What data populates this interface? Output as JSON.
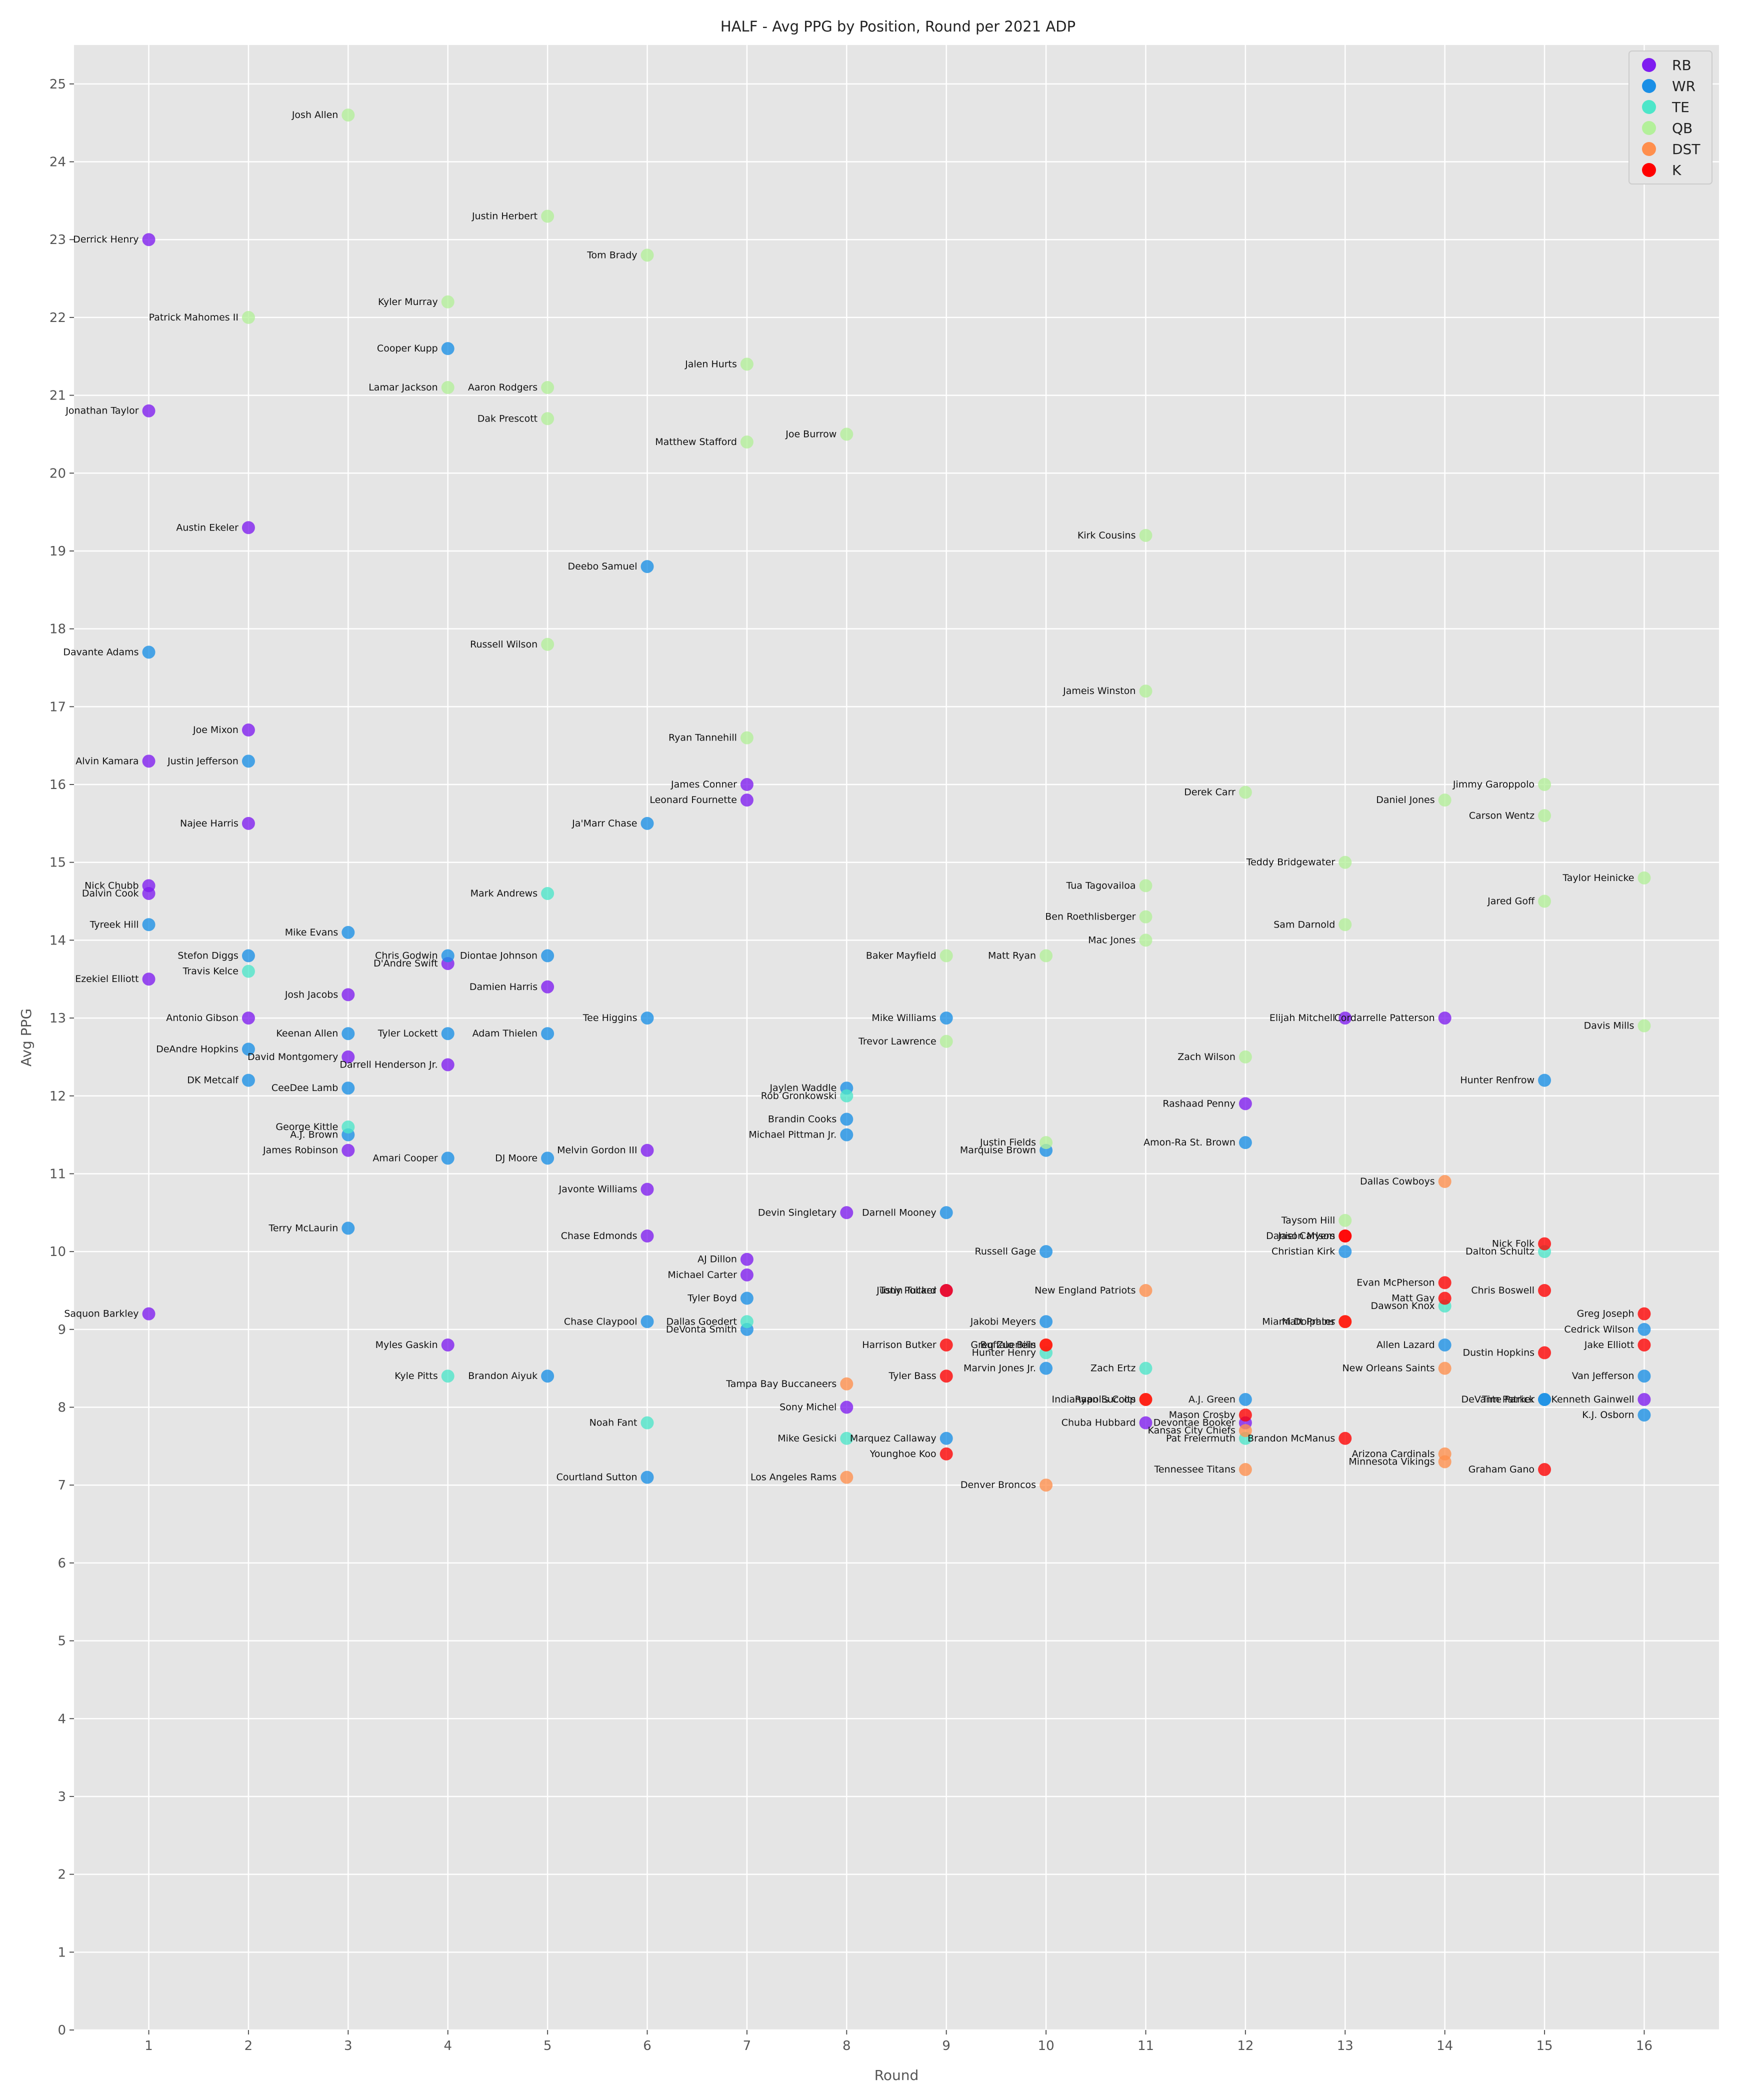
{
  "chart_data": {
    "type": "scatter",
    "title": "HALF - Avg PPG by Position, Round per 2021 ADP",
    "xlabel": "Round",
    "ylabel": "Avg PPG",
    "xlim": [
      0.25,
      16.75
    ],
    "ylim": [
      0,
      25.5
    ],
    "x_ticks": [
      1,
      2,
      3,
      4,
      5,
      6,
      7,
      8,
      9,
      10,
      11,
      12,
      13,
      14,
      15,
      16
    ],
    "y_ticks": [
      0,
      1,
      2,
      3,
      4,
      5,
      6,
      7,
      8,
      9,
      10,
      11,
      12,
      13,
      14,
      15,
      16,
      17,
      18,
      19,
      20,
      21,
      22,
      23,
      24,
      25
    ],
    "grid": true,
    "legend_position": "top-right",
    "colors": {
      "RB": "#7f1cf0",
      "WR": "#1a8fe6",
      "TE": "#4de6c9",
      "QB": "#b3f09a",
      "DST": "#ff8f4d",
      "K": "#ff0000"
    },
    "series": [
      {
        "name": "RB",
        "points": [
          {
            "label": "Derrick Henry",
            "x": 1,
            "y": 23.0
          },
          {
            "label": "Jonathan Taylor",
            "x": 1,
            "y": 20.8
          },
          {
            "label": "Alvin Kamara",
            "x": 1,
            "y": 16.3
          },
          {
            "label": "Nick Chubb",
            "x": 1,
            "y": 14.7
          },
          {
            "label": "Dalvin Cook",
            "x": 1,
            "y": 14.6
          },
          {
            "label": "Ezekiel Elliott",
            "x": 1,
            "y": 13.5
          },
          {
            "label": "Saquon Barkley",
            "x": 1,
            "y": 9.2
          },
          {
            "label": "Austin Ekeler",
            "x": 2,
            "y": 19.3
          },
          {
            "label": "Joe Mixon",
            "x": 2,
            "y": 16.7
          },
          {
            "label": "Najee Harris",
            "x": 2,
            "y": 15.5
          },
          {
            "label": "Antonio Gibson",
            "x": 2,
            "y": 13.0
          },
          {
            "label": "Josh Jacobs",
            "x": 3,
            "y": 13.3
          },
          {
            "label": "David Montgomery",
            "x": 3,
            "y": 12.5
          },
          {
            "label": "James Robinson",
            "x": 3,
            "y": 11.3
          },
          {
            "label": "D'Andre Swift",
            "x": 4,
            "y": 13.7
          },
          {
            "label": "Darrell Henderson Jr.",
            "x": 4,
            "y": 12.4
          },
          {
            "label": "Myles Gaskin",
            "x": 4,
            "y": 8.8
          },
          {
            "label": "Damien Harris",
            "x": 5,
            "y": 13.4
          },
          {
            "label": "Melvin Gordon III",
            "x": 6,
            "y": 11.3
          },
          {
            "label": "Javonte Williams",
            "x": 6,
            "y": 10.8
          },
          {
            "label": "Chase Edmonds",
            "x": 6,
            "y": 10.2
          },
          {
            "label": "James Conner",
            "x": 7,
            "y": 16.0
          },
          {
            "label": "Leonard Fournette",
            "x": 7,
            "y": 15.8
          },
          {
            "label": "AJ Dillon",
            "x": 7,
            "y": 9.9
          },
          {
            "label": "Michael Carter",
            "x": 7,
            "y": 9.7
          },
          {
            "label": "Devin Singletary",
            "x": 8,
            "y": 10.5
          },
          {
            "label": "Sony Michel",
            "x": 8,
            "y": 8.0
          },
          {
            "label": "Tony Pollard",
            "x": 9,
            "y": 9.5
          },
          {
            "label": "Rashaad Penny",
            "x": 12,
            "y": 11.9
          },
          {
            "label": "Devontae Booker",
            "x": 12,
            "y": 7.8
          },
          {
            "label": "Chuba Hubbard",
            "x": 11,
            "y": 7.8
          },
          {
            "label": "Elijah Mitchell",
            "x": 13,
            "y": 13.0
          },
          {
            "label": "Cordarrelle Patterson",
            "x": 14,
            "y": 13.0
          },
          {
            "label": "Kenneth Gainwell",
            "x": 16,
            "y": 8.1
          }
        ]
      },
      {
        "name": "WR",
        "points": [
          {
            "label": "Davante Adams",
            "x": 1,
            "y": 17.7
          },
          {
            "label": "Tyreek Hill",
            "x": 1,
            "y": 14.2
          },
          {
            "label": "Justin Jefferson",
            "x": 2,
            "y": 16.3
          },
          {
            "label": "Stefon Diggs",
            "x": 2,
            "y": 13.8
          },
          {
            "label": "DeAndre Hopkins",
            "x": 2,
            "y": 12.6
          },
          {
            "label": "DK Metcalf",
            "x": 2,
            "y": 12.2
          },
          {
            "label": "Mike Evans",
            "x": 3,
            "y": 14.1
          },
          {
            "label": "Keenan Allen",
            "x": 3,
            "y": 12.8
          },
          {
            "label": "CeeDee Lamb",
            "x": 3,
            "y": 12.1
          },
          {
            "label": "A.J. Brown",
            "x": 3,
            "y": 11.5
          },
          {
            "label": "Terry McLaurin",
            "x": 3,
            "y": 10.3
          },
          {
            "label": "Cooper Kupp",
            "x": 4,
            "y": 21.6
          },
          {
            "label": "Chris Godwin",
            "x": 4,
            "y": 13.8
          },
          {
            "label": "Tyler Lockett",
            "x": 4,
            "y": 12.8
          },
          {
            "label": "Amari Cooper",
            "x": 4,
            "y": 11.2
          },
          {
            "label": "Diontae Johnson",
            "x": 5,
            "y": 13.8
          },
          {
            "label": "Adam Thielen",
            "x": 5,
            "y": 12.8
          },
          {
            "label": "DJ Moore",
            "x": 5,
            "y": 11.2
          },
          {
            "label": "Brandon Aiyuk",
            "x": 5,
            "y": 8.4
          },
          {
            "label": "Deebo Samuel",
            "x": 6,
            "y": 18.8
          },
          {
            "label": "Ja'Marr Chase",
            "x": 6,
            "y": 15.5
          },
          {
            "label": "Tee Higgins",
            "x": 6,
            "y": 13.0
          },
          {
            "label": "Chase Claypool",
            "x": 6,
            "y": 9.1
          },
          {
            "label": "Courtland Sutton",
            "x": 6,
            "y": 7.1
          },
          {
            "label": "Tyler Boyd",
            "x": 7,
            "y": 9.4
          },
          {
            "label": "DeVonta Smith",
            "x": 7,
            "y": 9.0
          },
          {
            "label": "Jaylen Waddle",
            "x": 8,
            "y": 12.1
          },
          {
            "label": "Brandin Cooks",
            "x": 8,
            "y": 11.7
          },
          {
            "label": "Michael Pittman Jr.",
            "x": 8,
            "y": 11.5
          },
          {
            "label": "Mike Williams",
            "x": 9,
            "y": 13.0
          },
          {
            "label": "Darnell Mooney",
            "x": 9,
            "y": 10.5
          },
          {
            "label": "Marquez Callaway",
            "x": 9,
            "y": 7.6
          },
          {
            "label": "Marquise Brown",
            "x": 10,
            "y": 11.3
          },
          {
            "label": "Russell Gage",
            "x": 10,
            "y": 10.0
          },
          {
            "label": "Jakobi Meyers",
            "x": 10,
            "y": 9.1
          },
          {
            "label": "Marvin Jones Jr.",
            "x": 10,
            "y": 8.5
          },
          {
            "label": "Amon-Ra St. Brown",
            "x": 12,
            "y": 11.4
          },
          {
            "label": "A.J. Green",
            "x": 12,
            "y": 8.1
          },
          {
            "label": "Christian Kirk",
            "x": 13,
            "y": 10.0
          },
          {
            "label": "Allen Lazard",
            "x": 14,
            "y": 8.8
          },
          {
            "label": "Hunter Renfrow",
            "x": 15,
            "y": 12.2
          },
          {
            "label": "Tim Patrick",
            "x": 15,
            "y": 8.1
          },
          {
            "label": "DeVante Parker",
            "x": 15,
            "y": 8.1
          },
          {
            "label": "Cedrick Wilson",
            "x": 16,
            "y": 9.0
          },
          {
            "label": "Van Jefferson",
            "x": 16,
            "y": 8.4
          },
          {
            "label": "K.J. Osborn",
            "x": 16,
            "y": 7.9
          }
        ]
      },
      {
        "name": "TE",
        "points": [
          {
            "label": "Travis Kelce",
            "x": 2,
            "y": 13.6
          },
          {
            "label": "George Kittle",
            "x": 3,
            "y": 11.6
          },
          {
            "label": "Kyle Pitts",
            "x": 4,
            "y": 8.4
          },
          {
            "label": "Mark Andrews",
            "x": 5,
            "y": 14.6
          },
          {
            "label": "Noah Fant",
            "x": 6,
            "y": 7.8
          },
          {
            "label": "Dallas Goedert",
            "x": 7,
            "y": 9.1
          },
          {
            "label": "Rob Gronkowski",
            "x": 8,
            "y": 12.0
          },
          {
            "label": "Mike Gesicki",
            "x": 8,
            "y": 7.6
          },
          {
            "label": "Hunter Henry",
            "x": 10,
            "y": 8.7
          },
          {
            "label": "Zach Ertz",
            "x": 11,
            "y": 8.5
          },
          {
            "label": "Pat Freiermuth",
            "x": 12,
            "y": 7.6
          },
          {
            "label": "Dawson Knox",
            "x": 14,
            "y": 9.3
          },
          {
            "label": "Dalton Schultz",
            "x": 15,
            "y": 10.0
          }
        ]
      },
      {
        "name": "QB",
        "points": [
          {
            "label": "Patrick Mahomes II",
            "x": 2,
            "y": 22.0
          },
          {
            "label": "Josh Allen",
            "x": 3,
            "y": 24.6
          },
          {
            "label": "Kyler Murray",
            "x": 4,
            "y": 22.2
          },
          {
            "label": "Lamar Jackson",
            "x": 4,
            "y": 21.1
          },
          {
            "label": "Justin Herbert",
            "x": 5,
            "y": 23.3
          },
          {
            "label": "Aaron Rodgers",
            "x": 5,
            "y": 21.1
          },
          {
            "label": "Dak Prescott",
            "x": 5,
            "y": 20.7
          },
          {
            "label": "Russell Wilson",
            "x": 5,
            "y": 17.8
          },
          {
            "label": "Tom Brady",
            "x": 6,
            "y": 22.8
          },
          {
            "label": "Jalen Hurts",
            "x": 7,
            "y": 21.4
          },
          {
            "label": "Matthew Stafford",
            "x": 7,
            "y": 20.4
          },
          {
            "label": "Ryan Tannehill",
            "x": 7,
            "y": 16.6
          },
          {
            "label": "Joe Burrow",
            "x": 8,
            "y": 20.5
          },
          {
            "label": "Baker Mayfield",
            "x": 9,
            "y": 13.8
          },
          {
            "label": "Trevor Lawrence",
            "x": 9,
            "y": 12.7
          },
          {
            "label": "Matt Ryan",
            "x": 10,
            "y": 13.8
          },
          {
            "label": "Justin Fields",
            "x": 10,
            "y": 11.4
          },
          {
            "label": "Kirk Cousins",
            "x": 11,
            "y": 19.2
          },
          {
            "label": "Jameis Winston",
            "x": 11,
            "y": 17.2
          },
          {
            "label": "Tua Tagovailoa",
            "x": 11,
            "y": 14.7
          },
          {
            "label": "Ben Roethlisberger",
            "x": 11,
            "y": 14.3
          },
          {
            "label": "Mac Jones",
            "x": 11,
            "y": 14.0
          },
          {
            "label": "Derek Carr",
            "x": 12,
            "y": 15.9
          },
          {
            "label": "Zach Wilson",
            "x": 12,
            "y": 12.5
          },
          {
            "label": "Teddy Bridgewater",
            "x": 13,
            "y": 15.0
          },
          {
            "label": "Sam Darnold",
            "x": 13,
            "y": 14.2
          },
          {
            "label": "Taysom Hill",
            "x": 13,
            "y": 10.4
          },
          {
            "label": "Daniel Jones",
            "x": 14,
            "y": 15.8
          },
          {
            "label": "Jimmy Garoppolo",
            "x": 15,
            "y": 16.0
          },
          {
            "label": "Carson Wentz",
            "x": 15,
            "y": 15.6
          },
          {
            "label": "Jared Goff",
            "x": 15,
            "y": 14.5
          },
          {
            "label": "Taylor Heinicke",
            "x": 16,
            "y": 14.8
          },
          {
            "label": "Davis Mills",
            "x": 16,
            "y": 12.9
          }
        ]
      },
      {
        "name": "DST",
        "points": [
          {
            "label": "Tampa Bay Buccaneers",
            "x": 8,
            "y": 8.3
          },
          {
            "label": "Los Angeles Rams",
            "x": 8,
            "y": 7.1
          },
          {
            "label": "Buffalo Bills",
            "x": 10,
            "y": 8.8
          },
          {
            "label": "Denver Broncos",
            "x": 10,
            "y": 7.0
          },
          {
            "label": "New England Patriots",
            "x": 11,
            "y": 9.5
          },
          {
            "label": "Indianapolis Colts",
            "x": 11,
            "y": 8.1
          },
          {
            "label": "Kansas City Chiefs",
            "x": 12,
            "y": 7.7
          },
          {
            "label": "Tennessee Titans",
            "x": 12,
            "y": 7.2
          },
          {
            "label": "Miami Dolphins",
            "x": 13,
            "y": 9.1
          },
          {
            "label": "Dallas Cowboys",
            "x": 14,
            "y": 10.9
          },
          {
            "label": "New Orleans Saints",
            "x": 14,
            "y": 8.5
          },
          {
            "label": "Arizona Cardinals",
            "x": 14,
            "y": 7.4
          },
          {
            "label": "Minnesota Vikings",
            "x": 14,
            "y": 7.3
          }
        ]
      },
      {
        "name": "K",
        "points": [
          {
            "label": "Justin Tucker",
            "x": 9,
            "y": 9.5
          },
          {
            "label": "Harrison Butker",
            "x": 9,
            "y": 8.8
          },
          {
            "label": "Tyler Bass",
            "x": 9,
            "y": 8.4
          },
          {
            "label": "Younghoe Koo",
            "x": 9,
            "y": 7.4
          },
          {
            "label": "Greg Zuerlein",
            "x": 10,
            "y": 8.8
          },
          {
            "label": "Ryan Succop",
            "x": 11,
            "y": 8.1
          },
          {
            "label": "Mason Crosby",
            "x": 12,
            "y": 7.9
          },
          {
            "label": "Daniel Carlson",
            "x": 13,
            "y": 10.2
          },
          {
            "label": "Jason Myers",
            "x": 13,
            "y": 10.2
          },
          {
            "label": "Matt Prater",
            "x": 13,
            "y": 9.1
          },
          {
            "label": "Brandon McManus",
            "x": 13,
            "y": 7.6
          },
          {
            "label": "Evan McPherson",
            "x": 14,
            "y": 9.6
          },
          {
            "label": "Matt Gay",
            "x": 14,
            "y": 9.4
          },
          {
            "label": "Nick Folk",
            "x": 15,
            "y": 10.1
          },
          {
            "label": "Chris Boswell",
            "x": 15,
            "y": 9.5
          },
          {
            "label": "Dustin Hopkins",
            "x": 15,
            "y": 8.7
          },
          {
            "label": "Graham Gano",
            "x": 15,
            "y": 7.2
          },
          {
            "label": "Greg Joseph",
            "x": 16,
            "y": 9.2
          },
          {
            "label": "Jake Elliott",
            "x": 16,
            "y": 8.8
          }
        ]
      }
    ]
  }
}
